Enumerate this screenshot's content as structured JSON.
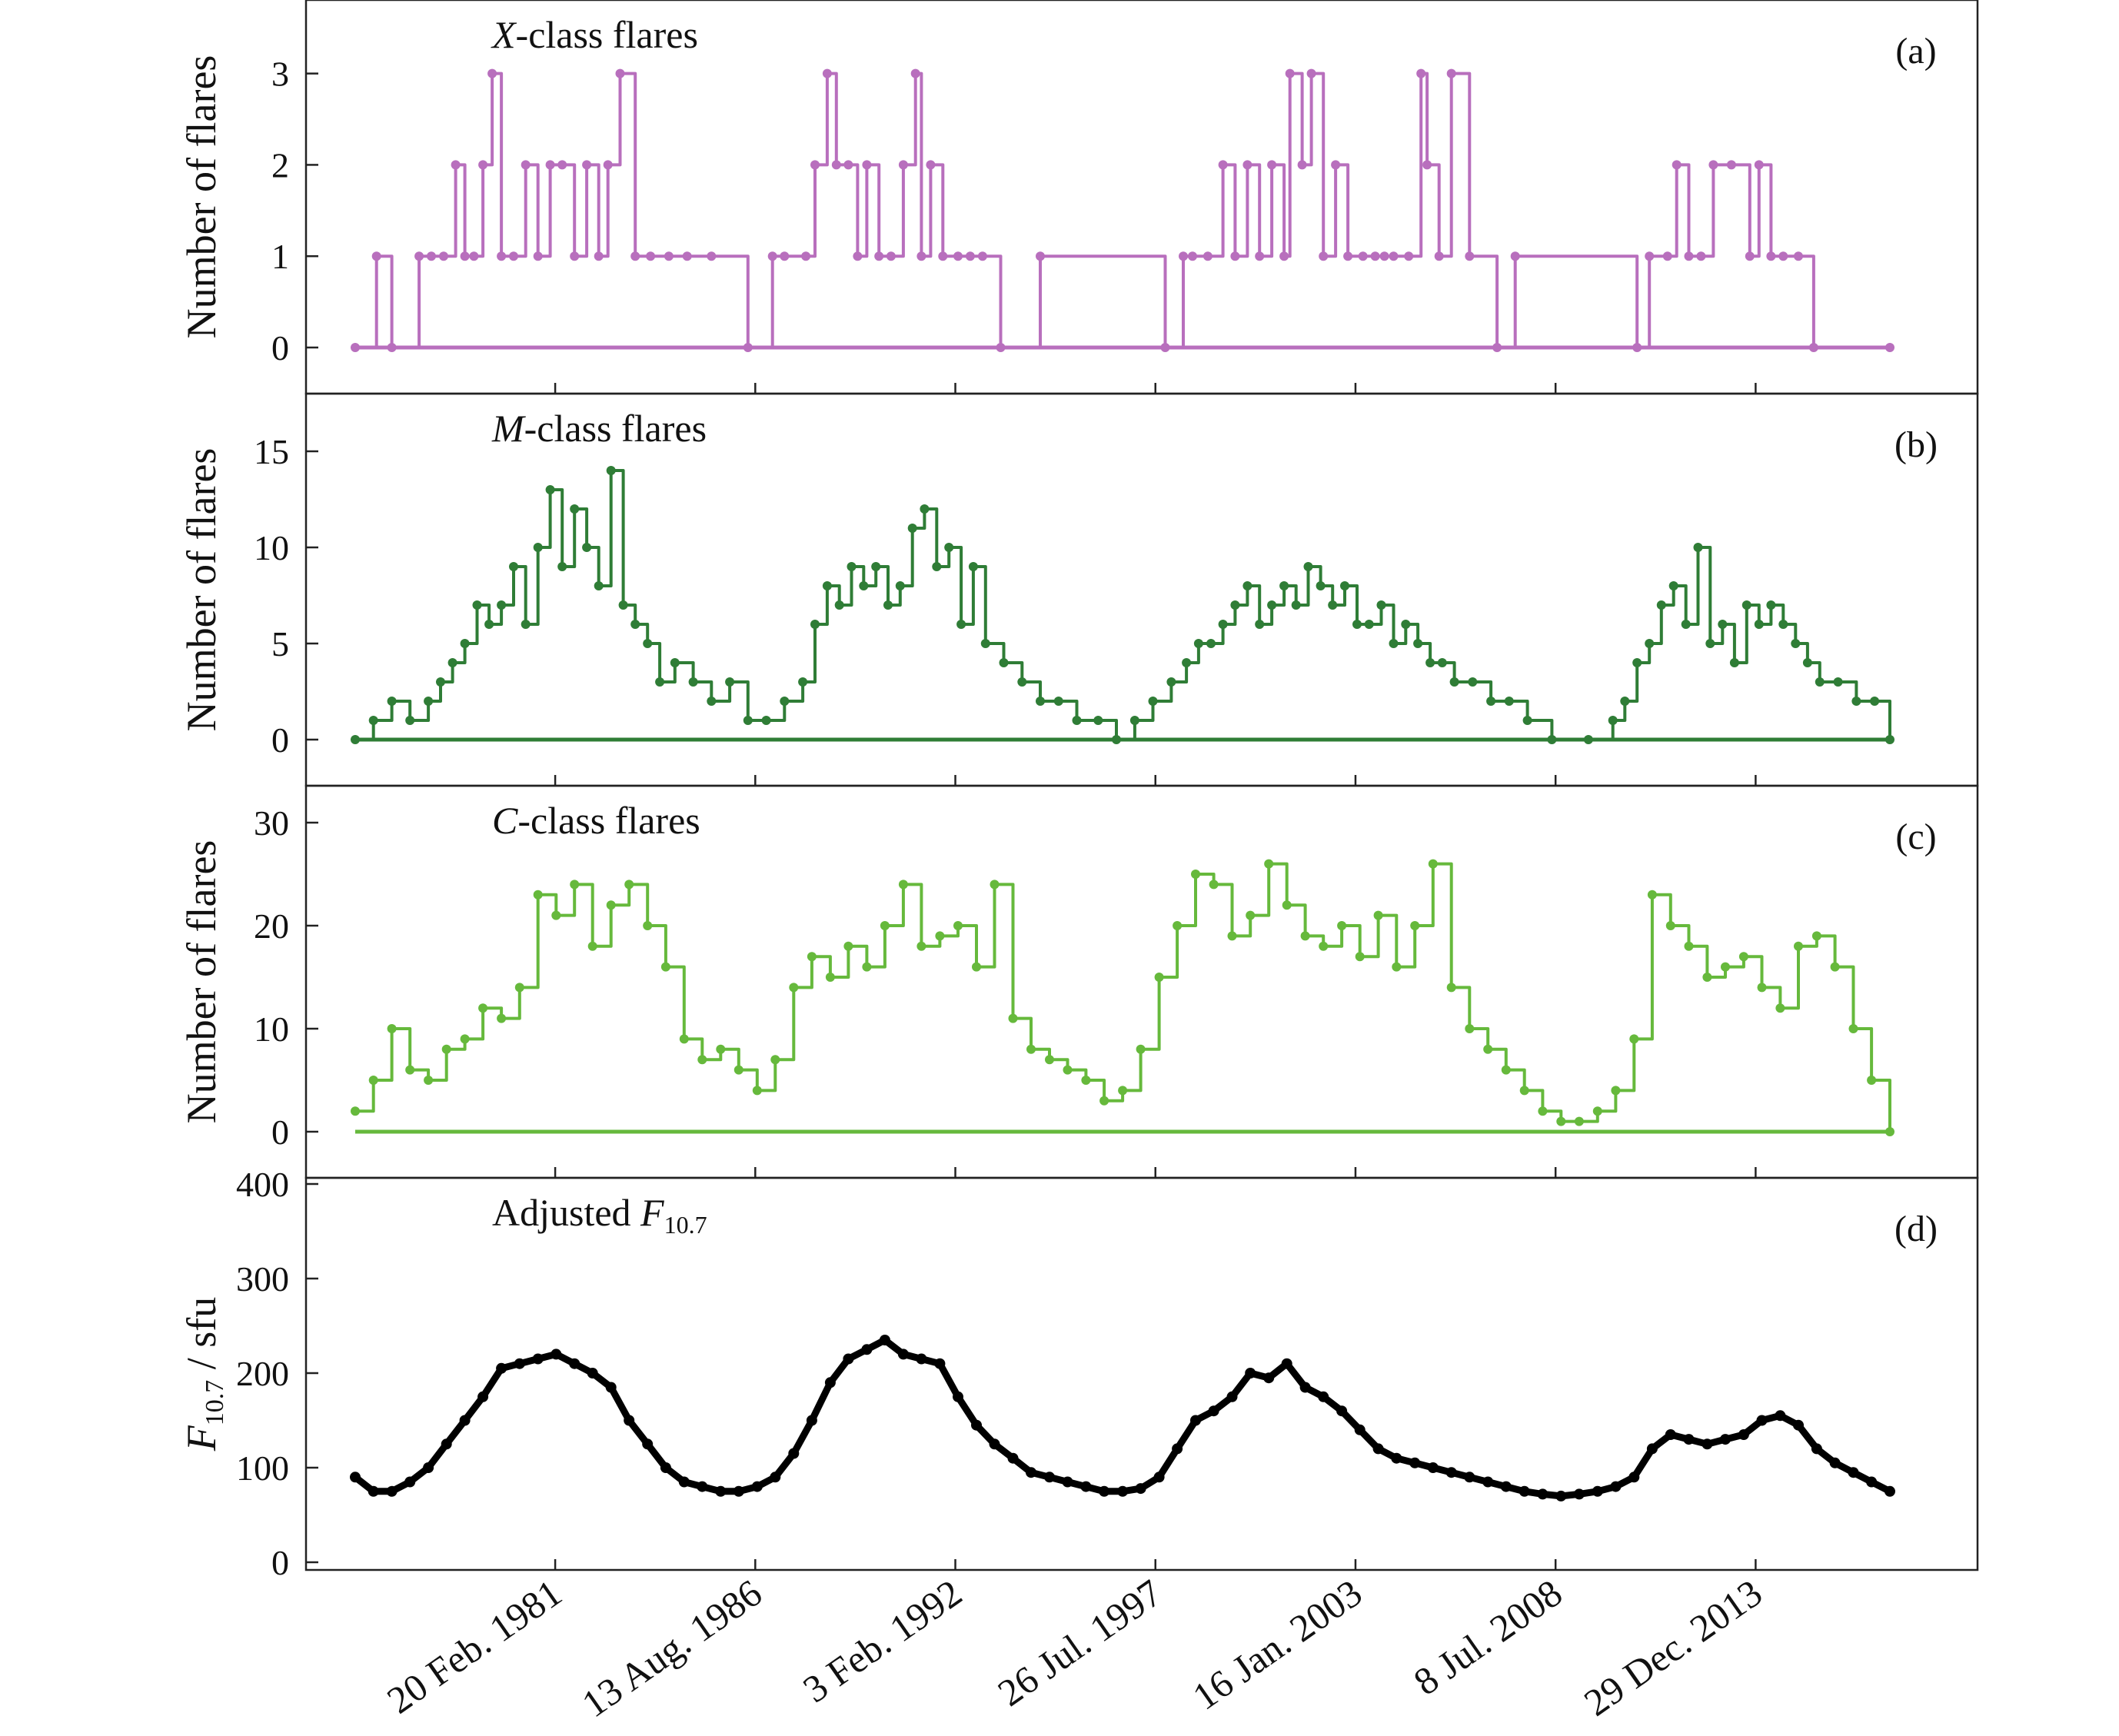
{
  "chart_data": [
    {
      "panel": "(a)",
      "type": "line",
      "title_italic": "X",
      "title": "-class flares",
      "ylabel": "Number of flares",
      "ylim": [
        0,
        3.3
      ],
      "yticks": [
        0,
        1,
        2,
        3
      ],
      "color": "#b86fbd",
      "x_range": [
        "1975-09-01",
        "2017-09-01"
      ],
      "series": [
        {
          "x": [
            "1975-09-01",
            "1976-04-01",
            "1976-09-01",
            "1977-06-01",
            "1977-10-01",
            "1978-02-01",
            "1978-06-01",
            "1978-09-01",
            "1978-12-01",
            "1979-03-01",
            "1979-06-01",
            "1979-09-01",
            "1980-01-01",
            "1980-05-01",
            "1980-09-01",
            "1981-01-01",
            "1981-05-01",
            "1981-09-01",
            "1982-01-01",
            "1982-05-01",
            "1982-08-01",
            "1982-12-01",
            "1983-05-01",
            "1983-10-01",
            "1984-04-01",
            "1984-10-01",
            "1985-06-01",
            "1986-06-01",
            "1987-02-01",
            "1987-06-01",
            "1988-01-01",
            "1988-04-01",
            "1988-08-01",
            "1988-11-01",
            "1989-03-01",
            "1989-06-01",
            "1989-09-01",
            "1990-01-01",
            "1990-05-01",
            "1990-09-01",
            "1991-01-01",
            "1991-03-01",
            "1991-06-01",
            "1991-10-01",
            "1992-03-01",
            "1992-07-01",
            "1992-11-01",
            "1993-05-01",
            "1994-06-01",
            "1997-11-01",
            "1998-05-01",
            "1998-08-01",
            "1999-01-01",
            "1999-06-01",
            "1999-10-01",
            "2000-02-01",
            "2000-06-01",
            "2000-10-01",
            "2001-02-01",
            "2001-04-01",
            "2001-08-01",
            "2001-11-01",
            "2002-03-01",
            "2002-07-01",
            "2002-11-01",
            "2003-04-01",
            "2003-08-01",
            "2003-11-01",
            "2004-02-01",
            "2004-07-01",
            "2004-11-01",
            "2005-01-01",
            "2005-05-01",
            "2005-09-01",
            "2006-03-01",
            "2006-12-01",
            "2007-06-01",
            "2010-10-01",
            "2011-02-01",
            "2011-08-01",
            "2011-11-01",
            "2012-03-01",
            "2012-07-01",
            "2012-11-01",
            "2013-05-01",
            "2013-11-01",
            "2014-02-01",
            "2014-06-01",
            "2014-10-01",
            "2015-03-01",
            "2015-08-01",
            "2017-09-01"
          ],
          "y": [
            0,
            1,
            0,
            1,
            1,
            1,
            2,
            1,
            1,
            2,
            3,
            1,
            1,
            2,
            1,
            2,
            2,
            1,
            2,
            1,
            2,
            3,
            1,
            1,
            1,
            1,
            1,
            0,
            1,
            1,
            1,
            2,
            3,
            2,
            2,
            1,
            2,
            1,
            1,
            2,
            3,
            1,
            2,
            1,
            1,
            1,
            1,
            0,
            1,
            0,
            1,
            1,
            1,
            2,
            1,
            2,
            1,
            2,
            1,
            3,
            2,
            3,
            1,
            2,
            1,
            1,
            1,
            1,
            1,
            1,
            3,
            2,
            1,
            3,
            1,
            0,
            1,
            0,
            1,
            1,
            2,
            1,
            1,
            2,
            2,
            1,
            2,
            1,
            1,
            1,
            0,
            0
          ]
        }
      ]
    },
    {
      "panel": "(b)",
      "type": "line",
      "title_italic": "M",
      "title": "-class flares",
      "ylabel": "Number of flares",
      "ylim": [
        0,
        15.6
      ],
      "yticks": [
        0,
        5,
        10,
        15
      ],
      "color": "#2f7d36",
      "x_range": [
        "1975-09-01",
        "2017-09-01"
      ],
      "series": [
        {
          "x": [
            "1975-09-01",
            "1976-03-01",
            "1976-09-01",
            "1977-03-01",
            "1977-09-01",
            "1978-01-01",
            "1978-05-01",
            "1978-09-01",
            "1979-01-01",
            "1979-05-01",
            "1979-09-01",
            "1980-01-01",
            "1980-05-01",
            "1980-09-01",
            "1981-01-01",
            "1981-05-01",
            "1981-09-01",
            "1982-01-01",
            "1982-05-01",
            "1982-09-01",
            "1983-01-01",
            "1983-05-01",
            "1983-09-01",
            "1984-01-01",
            "1984-06-01",
            "1984-12-01",
            "1985-06-01",
            "1985-12-01",
            "1986-06-01",
            "1986-12-01",
            "1987-06-01",
            "1987-12-01",
            "1988-04-01",
            "1988-08-01",
            "1988-12-01",
            "1989-04-01",
            "1989-08-01",
            "1989-12-01",
            "1990-04-01",
            "1990-08-01",
            "1990-12-01",
            "1991-04-01",
            "1991-08-01",
            "1991-12-01",
            "1992-04-01",
            "1992-08-01",
            "1992-12-01",
            "1993-06-01",
            "1993-12-01",
            "1994-06-01",
            "1994-12-01",
            "1995-06-01",
            "1996-01-01",
            "1996-07-01",
            "1997-01-01",
            "1997-07-01",
            "1998-01-01",
            "1998-06-01",
            "1998-10-01",
            "1999-02-01",
            "1999-06-01",
            "1999-10-01",
            "2000-02-01",
            "2000-06-01",
            "2000-10-01",
            "2001-02-01",
            "2001-06-01",
            "2001-10-01",
            "2002-02-01",
            "2002-06-01",
            "2002-10-01",
            "2003-02-01",
            "2003-06-01",
            "2003-10-01",
            "2004-02-01",
            "2004-06-01",
            "2004-10-01",
            "2005-02-01",
            "2005-06-01",
            "2005-10-01",
            "2006-04-01",
            "2006-10-01",
            "2007-04-01",
            "2007-10-01",
            "2008-06-01",
            "2009-06-01",
            "2010-02-01",
            "2010-06-01",
            "2010-10-01",
            "2011-02-01",
            "2011-06-01",
            "2011-10-01",
            "2012-02-01",
            "2012-06-01",
            "2012-10-01",
            "2013-02-01",
            "2013-06-01",
            "2013-10-01",
            "2014-02-01",
            "2014-06-01",
            "2014-10-01",
            "2015-02-01",
            "2015-06-01",
            "2015-10-01",
            "2016-04-01",
            "2016-10-01",
            "2017-04-01",
            "2017-09-01"
          ],
          "y": [
            0,
            1,
            2,
            1,
            2,
            3,
            4,
            5,
            7,
            6,
            7,
            9,
            6,
            10,
            13,
            9,
            12,
            10,
            8,
            14,
            7,
            6,
            5,
            3,
            4,
            3,
            2,
            3,
            1,
            1,
            2,
            3,
            6,
            8,
            7,
            9,
            8,
            9,
            7,
            8,
            11,
            12,
            9,
            10,
            6,
            9,
            5,
            4,
            3,
            2,
            2,
            1,
            1,
            0,
            1,
            2,
            3,
            4,
            5,
            5,
            6,
            7,
            8,
            6,
            7,
            8,
            7,
            9,
            8,
            7,
            8,
            6,
            6,
            7,
            5,
            6,
            5,
            4,
            4,
            3,
            3,
            2,
            2,
            1,
            0,
            0,
            1,
            2,
            4,
            5,
            7,
            8,
            6,
            10,
            5,
            6,
            4,
            7,
            6,
            7,
            6,
            5,
            4,
            3,
            3,
            2,
            2,
            0
          ]
        }
      ]
    },
    {
      "panel": "(c)",
      "type": "line",
      "title_italic": "C",
      "title": "-class flares",
      "ylabel": "Number of flares",
      "ylim": [
        0,
        30
      ],
      "yticks": [
        0,
        10,
        20,
        30
      ],
      "color": "#66b93c",
      "x_range": [
        "1975-09-01",
        "2017-09-01"
      ],
      "series": [
        {
          "x": [
            "1975-09-01",
            "1976-03-01",
            "1976-09-01",
            "1977-03-01",
            "1977-09-01",
            "1978-03-01",
            "1978-09-01",
            "1979-03-01",
            "1979-09-01",
            "1980-03-01",
            "1980-09-01",
            "1981-03-01",
            "1981-09-01",
            "1982-03-01",
            "1982-09-01",
            "1983-03-01",
            "1983-09-01",
            "1984-03-01",
            "1984-09-01",
            "1985-03-01",
            "1985-09-01",
            "1986-03-01",
            "1986-09-01",
            "1987-03-01",
            "1987-09-01",
            "1988-03-01",
            "1988-09-01",
            "1989-03-01",
            "1989-09-01",
            "1990-03-01",
            "1990-09-01",
            "1991-03-01",
            "1991-09-01",
            "1992-03-01",
            "1992-09-01",
            "1993-03-01",
            "1993-09-01",
            "1994-03-01",
            "1994-09-01",
            "1995-03-01",
            "1995-09-01",
            "1996-03-01",
            "1996-09-01",
            "1997-03-01",
            "1997-09-01",
            "1998-03-01",
            "1998-09-01",
            "1999-03-01",
            "1999-09-01",
            "2000-03-01",
            "2000-09-01",
            "2001-03-01",
            "2001-09-01",
            "2002-03-01",
            "2002-09-01",
            "2003-03-01",
            "2003-09-01",
            "2004-03-01",
            "2004-09-01",
            "2005-03-01",
            "2005-09-01",
            "2006-03-01",
            "2006-09-01",
            "2007-03-01",
            "2007-09-01",
            "2008-03-01",
            "2008-09-01",
            "2009-03-01",
            "2009-09-01",
            "2010-03-01",
            "2010-09-01",
            "2011-03-01",
            "2011-09-01",
            "2012-03-01",
            "2012-09-01",
            "2013-03-01",
            "2013-09-01",
            "2014-03-01",
            "2014-09-01",
            "2015-03-01",
            "2015-09-01",
            "2016-03-01",
            "2016-09-01",
            "2017-03-01",
            "2017-09-01"
          ],
          "y": [
            2,
            5,
            10,
            6,
            5,
            8,
            9,
            12,
            11,
            14,
            23,
            21,
            24,
            18,
            22,
            24,
            20,
            16,
            9,
            7,
            8,
            6,
            4,
            7,
            14,
            17,
            15,
            18,
            16,
            20,
            24,
            18,
            19,
            20,
            16,
            24,
            11,
            8,
            7,
            6,
            5,
            3,
            4,
            8,
            15,
            20,
            25,
            24,
            19,
            21,
            26,
            22,
            19,
            18,
            20,
            17,
            21,
            16,
            20,
            26,
            14,
            10,
            8,
            6,
            4,
            2,
            1,
            1,
            2,
            4,
            9,
            23,
            20,
            18,
            15,
            16,
            17,
            14,
            12,
            18,
            19,
            16,
            10,
            5,
            0
          ]
        }
      ]
    },
    {
      "panel": "(d)",
      "type": "line",
      "title": "Adjusted ",
      "title_italic": "F",
      "title_sub": "10.7",
      "ylabel_italic": "F",
      "ylabel_sub": "10.7",
      "ylabel": " / sfu",
      "ylim": [
        0,
        400
      ],
      "yticks": [
        0,
        100,
        200,
        300,
        400
      ],
      "color": "#000000",
      "x_range": [
        "1975-09-01",
        "2017-09-01"
      ],
      "xticks": [
        "1981-02-20",
        "1986-08-13",
        "1992-02-03",
        "1997-07-26",
        "2003-01-16",
        "2008-07-08",
        "2013-12-29"
      ],
      "xticklabels": [
        "20 Feb. 1981",
        "13 Aug. 1986",
        "3 Feb. 1992",
        "26 Jul. 1997",
        "16 Jan. 2003",
        "8 Jul. 2008",
        "29 Dec. 2013"
      ],
      "series": [
        {
          "x": [
            "1975-09-01",
            "1976-03-01",
            "1976-09-01",
            "1977-03-01",
            "1977-09-01",
            "1978-03-01",
            "1978-09-01",
            "1979-03-01",
            "1979-09-01",
            "1980-03-01",
            "1980-09-01",
            "1981-03-01",
            "1981-09-01",
            "1982-03-01",
            "1982-09-01",
            "1983-03-01",
            "1983-09-01",
            "1984-03-01",
            "1984-09-01",
            "1985-03-01",
            "1985-09-01",
            "1986-03-01",
            "1986-09-01",
            "1987-03-01",
            "1987-09-01",
            "1988-03-01",
            "1988-09-01",
            "1989-03-01",
            "1989-09-01",
            "1990-03-01",
            "1990-09-01",
            "1991-03-01",
            "1991-09-01",
            "1992-03-01",
            "1992-09-01",
            "1993-03-01",
            "1993-09-01",
            "1994-03-01",
            "1994-09-01",
            "1995-03-01",
            "1995-09-01",
            "1996-03-01",
            "1996-09-01",
            "1997-03-01",
            "1997-09-01",
            "1998-03-01",
            "1998-09-01",
            "1999-03-01",
            "1999-09-01",
            "2000-03-01",
            "2000-09-01",
            "2001-03-01",
            "2001-09-01",
            "2002-03-01",
            "2002-09-01",
            "2003-03-01",
            "2003-09-01",
            "2004-03-01",
            "2004-09-01",
            "2005-03-01",
            "2005-09-01",
            "2006-03-01",
            "2006-09-01",
            "2007-03-01",
            "2007-09-01",
            "2008-03-01",
            "2008-09-01",
            "2009-03-01",
            "2009-09-01",
            "2010-03-01",
            "2010-09-01",
            "2011-03-01",
            "2011-09-01",
            "2012-03-01",
            "2012-09-01",
            "2013-03-01",
            "2013-09-01",
            "2014-03-01",
            "2014-09-01",
            "2015-03-01",
            "2015-09-01",
            "2016-03-01",
            "2016-09-01",
            "2017-03-01",
            "2017-09-01"
          ],
          "y": [
            90,
            75,
            75,
            85,
            100,
            125,
            150,
            175,
            205,
            210,
            215,
            220,
            210,
            200,
            185,
            150,
            125,
            100,
            85,
            80,
            75,
            75,
            80,
            90,
            115,
            150,
            190,
            215,
            225,
            235,
            220,
            215,
            210,
            175,
            145,
            125,
            110,
            95,
            90,
            85,
            80,
            75,
            75,
            78,
            90,
            120,
            150,
            160,
            175,
            200,
            195,
            210,
            185,
            175,
            160,
            140,
            120,
            110,
            105,
            100,
            95,
            90,
            85,
            80,
            75,
            72,
            70,
            72,
            75,
            80,
            90,
            120,
            135,
            130,
            125,
            130,
            135,
            150,
            155,
            145,
            120,
            105,
            95,
            85,
            75
          ]
        }
      ]
    }
  ]
}
